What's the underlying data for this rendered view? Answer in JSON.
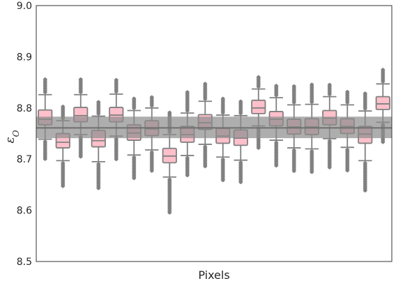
{
  "chart_data": {
    "type": "box",
    "xlabel": "Pixels",
    "ylabel": "ε",
    "ylabel_subscript": "O",
    "ylim": [
      8.5,
      9.0
    ],
    "yticks": [
      "8.5",
      "8.6",
      "8.7",
      "8.8",
      "8.9",
      "9.0"
    ],
    "grid": false,
    "colors": {
      "box_fill": "#ffc0cb",
      "line": "#808080",
      "band": "#8c8c8c",
      "axis": "#333333"
    },
    "band": {
      "center": 8.761,
      "low": 8.741,
      "high": 8.783,
      "opacity": 0.7
    },
    "boxes": [
      {
        "median": 8.778,
        "q1": 8.767,
        "q3": 8.796,
        "whisker_low": 8.739,
        "whisker_high": 8.826,
        "flier_low": 8.698,
        "flier_high": 8.857
      },
      {
        "median": 8.733,
        "q1": 8.722,
        "q3": 8.75,
        "whisker_low": 8.697,
        "whisker_high": 8.775,
        "flier_low": 8.645,
        "flier_high": 8.805
      },
      {
        "median": 8.785,
        "q1": 8.773,
        "q3": 8.801,
        "whisker_low": 8.748,
        "whisker_high": 8.826,
        "flier_low": 8.703,
        "flier_high": 8.857
      },
      {
        "median": 8.736,
        "q1": 8.724,
        "q3": 8.756,
        "whisker_low": 8.695,
        "whisker_high": 8.784,
        "flier_low": 8.641,
        "flier_high": 8.814
      },
      {
        "median": 8.786,
        "q1": 8.773,
        "q3": 8.801,
        "whisker_low": 8.745,
        "whisker_high": 8.827,
        "flier_low": 8.697,
        "flier_high": 8.857
      },
      {
        "median": 8.751,
        "q1": 8.737,
        "q3": 8.767,
        "whisker_low": 8.708,
        "whisker_high": 8.795,
        "flier_low": 8.662,
        "flier_high": 8.82
      },
      {
        "median": 8.759,
        "q1": 8.746,
        "q3": 8.775,
        "whisker_low": 8.718,
        "whisker_high": 8.8,
        "flier_low": 8.675,
        "flier_high": 8.822
      },
      {
        "median": 8.706,
        "q1": 8.693,
        "q3": 8.721,
        "whisker_low": 8.665,
        "whisker_high": 8.748,
        "flier_low": 8.593,
        "flier_high": 8.793
      },
      {
        "median": 8.748,
        "q1": 8.733,
        "q3": 8.764,
        "whisker_low": 8.707,
        "whisker_high": 8.79,
        "flier_low": 8.666,
        "flier_high": 8.832
      },
      {
        "median": 8.771,
        "q1": 8.758,
        "q3": 8.787,
        "whisker_low": 8.729,
        "whisker_high": 8.813,
        "flier_low": 8.685,
        "flier_high": 8.85
      },
      {
        "median": 8.745,
        "q1": 8.731,
        "q3": 8.76,
        "whisker_low": 8.704,
        "whisker_high": 8.786,
        "flier_low": 8.657,
        "flier_high": 8.82
      },
      {
        "median": 8.741,
        "q1": 8.727,
        "q3": 8.757,
        "whisker_low": 8.698,
        "whisker_high": 8.785,
        "flier_low": 8.654,
        "flier_high": 8.814
      },
      {
        "median": 8.8,
        "q1": 8.789,
        "q3": 8.815,
        "whisker_low": 8.765,
        "whisker_high": 8.837,
        "flier_low": 8.72,
        "flier_high": 8.863
      },
      {
        "median": 8.778,
        "q1": 8.765,
        "q3": 8.793,
        "whisker_low": 8.737,
        "whisker_high": 8.82,
        "flier_low": 8.686,
        "flier_high": 8.846
      },
      {
        "median": 8.763,
        "q1": 8.749,
        "q3": 8.778,
        "whisker_low": 8.722,
        "whisker_high": 8.806,
        "flier_low": 8.676,
        "flier_high": 8.845
      },
      {
        "median": 8.763,
        "q1": 8.748,
        "q3": 8.779,
        "whisker_low": 8.72,
        "whisker_high": 8.807,
        "flier_low": 8.673,
        "flier_high": 8.847
      },
      {
        "median": 8.78,
        "q1": 8.767,
        "q3": 8.795,
        "whisker_low": 8.74,
        "whisker_high": 8.822,
        "flier_low": 8.683,
        "flier_high": 8.846
      },
      {
        "median": 8.764,
        "q1": 8.75,
        "q3": 8.779,
        "whisker_low": 8.723,
        "whisker_high": 8.806,
        "flier_low": 8.677,
        "flier_high": 8.833
      },
      {
        "median": 8.749,
        "q1": 8.731,
        "q3": 8.764,
        "whisker_low": 8.697,
        "whisker_high": 8.794,
        "flier_low": 8.636,
        "flier_high": 8.829
      },
      {
        "median": 8.808,
        "q1": 8.797,
        "q3": 8.822,
        "whisker_low": 8.772,
        "whisker_high": 8.847,
        "flier_low": 8.731,
        "flier_high": 8.876
      }
    ]
  }
}
